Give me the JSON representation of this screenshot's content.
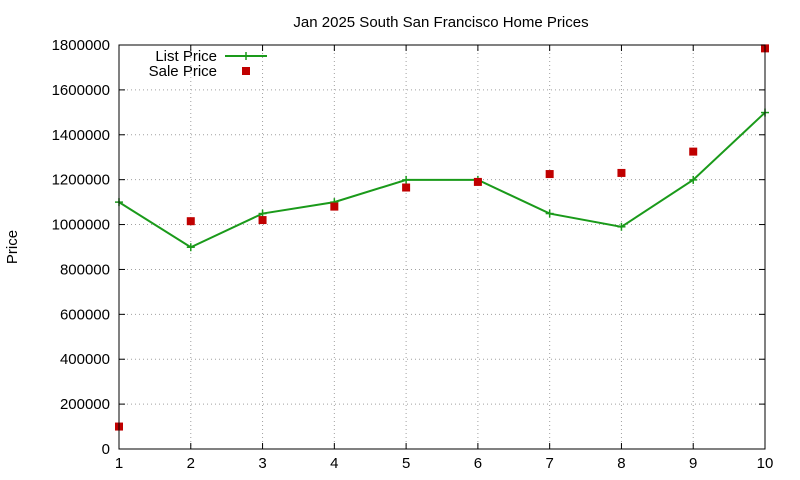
{
  "chart_data": {
    "type": "line",
    "title": "Jan 2025 South San Francisco Home Prices",
    "xlabel": "",
    "ylabel": "Price",
    "x": [
      1,
      2,
      3,
      4,
      5,
      6,
      7,
      8,
      9,
      10
    ],
    "xlim": [
      1,
      10
    ],
    "ylim": [
      0,
      1800000
    ],
    "x_ticks": [
      "1",
      "2",
      "3",
      "4",
      "5",
      "6",
      "7",
      "8",
      "9",
      "10"
    ],
    "y_ticks": [
      "0",
      "200000",
      "400000",
      "600000",
      "800000",
      "1000000",
      "1200000",
      "1400000",
      "1600000",
      "1800000"
    ],
    "grid": true,
    "legend_position": "top-left",
    "series": [
      {
        "name": "List Price",
        "style": "lines+points",
        "color": "#1a9a1a",
        "values": [
          1100000,
          899000,
          1049000,
          1100000,
          1199000,
          1199000,
          1049000,
          990000,
          1199000,
          1499000
        ]
      },
      {
        "name": "Sale Price",
        "style": "points",
        "color": "#c00000",
        "values": [
          100000,
          1015000,
          1020000,
          1080000,
          1165000,
          1190000,
          1225000,
          1230000,
          1325000,
          1785000
        ]
      }
    ]
  }
}
